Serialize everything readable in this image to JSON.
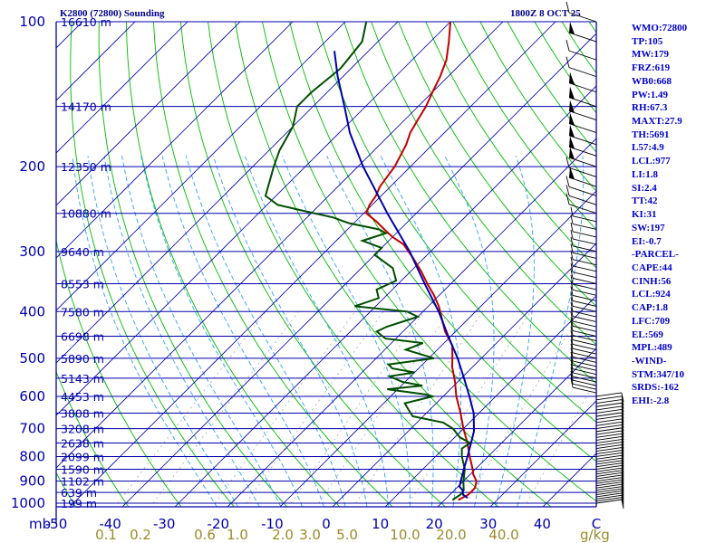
{
  "header": {
    "title": "K2800 (72800) Sounding",
    "valid_time": "1800Z  8 OCT 25"
  },
  "chart_data": {
    "type": "skew-t log-p sounding",
    "pressure_axis": {
      "unit": "mb",
      "ticks": [
        100,
        200,
        300,
        400,
        500,
        600,
        700,
        800,
        900,
        1000
      ],
      "range": [
        100,
        1000
      ]
    },
    "temperature_axis": {
      "unit": "C",
      "ticks": [
        -50,
        -40,
        -30,
        -20,
        -10,
        0,
        10,
        20,
        30,
        40
      ],
      "labels": [
        "-50",
        "-40",
        "-30",
        "-20",
        "-10",
        "0",
        "10",
        "20",
        "30",
        "40",
        "C"
      ]
    },
    "mixing_ratio_axis": {
      "unit": "g/kg",
      "values": [
        0.1,
        0.2,
        0.6,
        1.0,
        2.0,
        3.0,
        5.0,
        10.0,
        20.0,
        40.0
      ],
      "labels": [
        "0.1",
        "0.2",
        "0.6",
        "1.0",
        "2.0",
        "3.0",
        "5.0",
        "10.0",
        "20.0",
        "40.0"
      ]
    },
    "height_levels": [
      {
        "p": 100,
        "label": "16610 m"
      },
      {
        "p": 150,
        "label": "14170 m"
      },
      {
        "p": 200,
        "label": "12350 m"
      },
      {
        "p": 250,
        "label": "10880 m"
      },
      {
        "p": 300,
        "label": "9640 m"
      },
      {
        "p": 350,
        "label": "8553 m"
      },
      {
        "p": 400,
        "label": "7580 m"
      },
      {
        "p": 450,
        "label": "6698 m"
      },
      {
        "p": 500,
        "label": "5890 m"
      },
      {
        "p": 550,
        "label": "5143 m"
      },
      {
        "p": 600,
        "label": "4453 m"
      },
      {
        "p": 650,
        "label": "3808 m"
      },
      {
        "p": 700,
        "label": "3208 m"
      },
      {
        "p": 750,
        "label": "2638 m"
      },
      {
        "p": 800,
        "label": "2099 m"
      },
      {
        "p": 850,
        "label": "1590 m"
      },
      {
        "p": 900,
        "label": "1102 m"
      },
      {
        "p": 950,
        "label": "639 m"
      },
      {
        "p": 1000,
        "label": "199 m"
      }
    ],
    "series": [
      {
        "name": "temperature",
        "color": "#c00000",
        "points": [
          [
            985,
            22.6
          ],
          [
            960,
            23.5
          ],
          [
            930,
            23.5
          ],
          [
            900,
            22.5
          ],
          [
            870,
            20.5
          ],
          [
            850,
            19.5
          ],
          [
            800,
            16.5
          ],
          [
            750,
            13.5
          ],
          [
            700,
            10.0
          ],
          [
            650,
            6.5
          ],
          [
            600,
            2.5
          ],
          [
            560,
            -0.5
          ],
          [
            520,
            -4.0
          ],
          [
            500,
            -5.5
          ],
          [
            470,
            -8.0
          ],
          [
            440,
            -12.0
          ],
          [
            410,
            -15.5
          ],
          [
            390,
            -18.0
          ],
          [
            370,
            -21.0
          ],
          [
            350,
            -24.5
          ],
          [
            330,
            -28.0
          ],
          [
            310,
            -32.0
          ],
          [
            290,
            -36.5
          ],
          [
            280,
            -40.0
          ],
          [
            270,
            -43.0
          ],
          [
            260,
            -46.0
          ],
          [
            250,
            -49.5
          ],
          [
            240,
            -50.5
          ],
          [
            230,
            -51.0
          ],
          [
            220,
            -52.0
          ],
          [
            200,
            -53.0
          ],
          [
            180,
            -55.0
          ],
          [
            170,
            -56.5
          ],
          [
            160,
            -57.5
          ],
          [
            150,
            -58.5
          ],
          [
            140,
            -60.0
          ],
          [
            130,
            -61.5
          ],
          [
            120,
            -63.5
          ],
          [
            110,
            -66.5
          ],
          [
            100,
            -70.0
          ]
        ]
      },
      {
        "name": "dewpoint",
        "color": "#004d00",
        "points": [
          [
            985,
            21.5
          ],
          [
            960,
            22.0
          ],
          [
            940,
            21.8
          ],
          [
            900,
            20.0
          ],
          [
            850,
            18.0
          ],
          [
            800,
            15.0
          ],
          [
            770,
            13.5
          ],
          [
            750,
            14.0
          ],
          [
            730,
            11.0
          ],
          [
            700,
            8.0
          ],
          [
            680,
            5.0
          ],
          [
            660,
            -2.0
          ],
          [
            640,
            -4.0
          ],
          [
            620,
            -6.0
          ],
          [
            600,
            -2.0
          ],
          [
            595,
            -3.5
          ],
          [
            580,
            -12.0
          ],
          [
            570,
            -6.0
          ],
          [
            560,
            -10.5
          ],
          [
            545,
            -14.0
          ],
          [
            535,
            -10.0
          ],
          [
            525,
            -15.0
          ],
          [
            515,
            -16.5
          ],
          [
            500,
            -9.0
          ],
          [
            480,
            -16.0
          ],
          [
            465,
            -14.0
          ],
          [
            455,
            -22.0
          ],
          [
            440,
            -25.0
          ],
          [
            430,
            -24.0
          ],
          [
            410,
            -20.0
          ],
          [
            400,
            -23.0
          ],
          [
            390,
            -34.0
          ],
          [
            375,
            -31.0
          ],
          [
            360,
            -33.0
          ],
          [
            345,
            -31.0
          ],
          [
            325,
            -34.0
          ],
          [
            305,
            -40.0
          ],
          [
            295,
            -40.0
          ],
          [
            285,
            -45.0
          ],
          [
            275,
            -42.0
          ],
          [
            270,
            -44.0
          ],
          [
            262,
            -51.0
          ],
          [
            255,
            -55.0
          ],
          [
            247,
            -62.0
          ],
          [
            240,
            -68.0
          ],
          [
            230,
            -72.0
          ],
          [
            200,
            -76.0
          ],
          [
            185,
            -78.0
          ],
          [
            165,
            -80.0
          ],
          [
            150,
            -83.0
          ],
          [
            140,
            -83.0
          ],
          [
            125,
            -82.0
          ],
          [
            110,
            -83.0
          ],
          [
            100,
            -86.0
          ]
        ]
      },
      {
        "name": "parcel",
        "color": "#0000aa",
        "points": [
          [
            975,
            24.0
          ],
          [
            960,
            22.5
          ],
          [
            940,
            21.6
          ],
          [
            924,
            20.3
          ],
          [
            900,
            19.5
          ],
          [
            850,
            17.8
          ],
          [
            800,
            16.1
          ],
          [
            750,
            14.2
          ],
          [
            709,
            12.5
          ],
          [
            650,
            9.0
          ],
          [
            600,
            5.0
          ],
          [
            550,
            0.5
          ],
          [
            500,
            -4.5
          ],
          [
            450,
            -10.5
          ],
          [
            400,
            -17.0
          ],
          [
            350,
            -25.0
          ],
          [
            300,
            -34.0
          ],
          [
            250,
            -45.5
          ],
          [
            200,
            -59.0
          ],
          [
            170,
            -68.0
          ],
          [
            150,
            -74.0
          ],
          [
            130,
            -81.0
          ],
          [
            115,
            -86.5
          ]
        ]
      }
    ]
  },
  "indices": [
    "WMO:72800",
    "TP:105",
    "MW:179",
    "FRZ:619",
    "WB0:668",
    "PW:1.49",
    "RH:67.3",
    "MAXT:27.9",
    "TH:5691",
    "L57:4.9",
    "LCL:977",
    "LI:1.8",
    "SI:2.4",
    "TT:42",
    "KI:31",
    "SW:197",
    "EI:-0.7",
    "-PARCEL-",
    "CAPE:44",
    "CINH:56",
    "LCL:924",
    "CAP:1.8",
    "LFC:709",
    "EL:569",
    "MPL:489",
    "-WIND-",
    "STM:347/10",
    "SRDS:-162",
    "EHI:-2.8"
  ],
  "labels": {
    "mb": "mb",
    "gkg": "g/kg"
  },
  "colors": {
    "isobar": "#0000aa",
    "isotherm": "#0000aa",
    "dry_adiabat": "#00bb00",
    "moist_adiabat": "#30a0ff",
    "mixing_ratio": "#aaaaaa",
    "border": "#0000aa",
    "mixing_label": "#9a8a2a",
    "wind": "#000000"
  }
}
